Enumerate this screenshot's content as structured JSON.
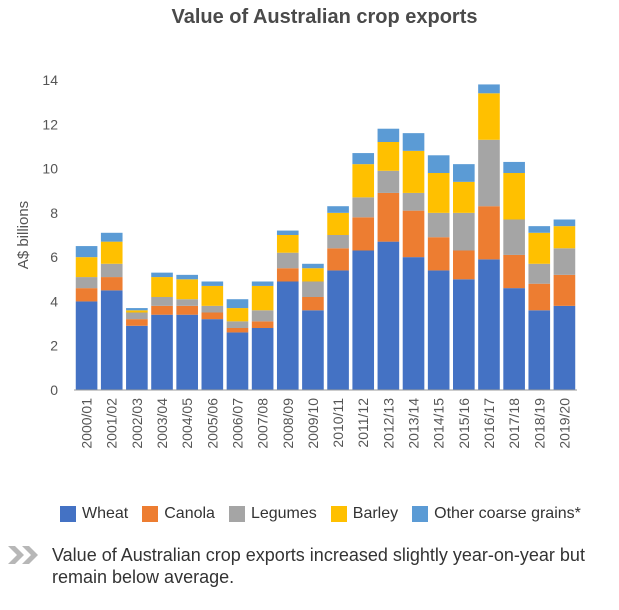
{
  "chart_data": {
    "type": "bar",
    "stacked": true,
    "title": "Value of Australian crop exports",
    "xlabel": "",
    "ylabel": "A$ billions",
    "ylim": [
      0,
      14
    ],
    "yticks": [
      0,
      2,
      4,
      6,
      8,
      10,
      12,
      14
    ],
    "grid": false,
    "legend_position": "bottom",
    "categories": [
      "2000/01",
      "2001/02",
      "2002/03",
      "2003/04",
      "2004/05",
      "2005/06",
      "2006/07",
      "2007/08",
      "2008/09",
      "2009/10",
      "2010/11",
      "2011/12",
      "2012/13",
      "2013/14",
      "2014/15",
      "2015/16",
      "2016/17",
      "2017/18",
      "2018/19",
      "2019/20"
    ],
    "series": [
      {
        "name": "Wheat",
        "color": "#4472c4",
        "values": [
          4.0,
          4.5,
          2.9,
          3.4,
          3.4,
          3.2,
          2.6,
          2.8,
          4.9,
          3.6,
          5.4,
          6.3,
          6.7,
          6.0,
          5.4,
          5.0,
          5.9,
          4.6,
          3.6,
          3.8
        ]
      },
      {
        "name": "Canola",
        "color": "#ed7d31",
        "values": [
          0.6,
          0.6,
          0.3,
          0.4,
          0.4,
          0.3,
          0.2,
          0.3,
          0.6,
          0.6,
          1.0,
          1.5,
          2.2,
          2.1,
          1.5,
          1.3,
          2.4,
          1.5,
          1.2,
          1.4
        ]
      },
      {
        "name": "Legumes",
        "color": "#a5a5a5",
        "values": [
          0.5,
          0.6,
          0.3,
          0.4,
          0.3,
          0.3,
          0.3,
          0.5,
          0.7,
          0.7,
          0.6,
          0.9,
          1.0,
          0.8,
          1.1,
          1.7,
          3.0,
          1.6,
          0.9,
          1.2
        ]
      },
      {
        "name": "Barley",
        "color": "#ffc000",
        "values": [
          0.9,
          1.0,
          0.1,
          0.9,
          0.9,
          0.9,
          0.6,
          1.1,
          0.8,
          0.6,
          1.0,
          1.5,
          1.3,
          1.9,
          1.8,
          1.4,
          2.1,
          2.1,
          1.4,
          1.0
        ]
      },
      {
        "name": "Other coarse grains*",
        "color": "#5b9bd5",
        "values": [
          0.5,
          0.4,
          0.1,
          0.2,
          0.2,
          0.2,
          0.4,
          0.2,
          0.2,
          0.2,
          0.3,
          0.5,
          0.6,
          0.8,
          0.8,
          0.8,
          0.4,
          0.5,
          0.3,
          0.3
        ]
      }
    ]
  },
  "footnote": {
    "text": "Value of Australian crop exports increased slightly year-on-year but remain below average.",
    "icon": "double-chevron-right-icon",
    "icon_color": "#b7b7b7"
  }
}
